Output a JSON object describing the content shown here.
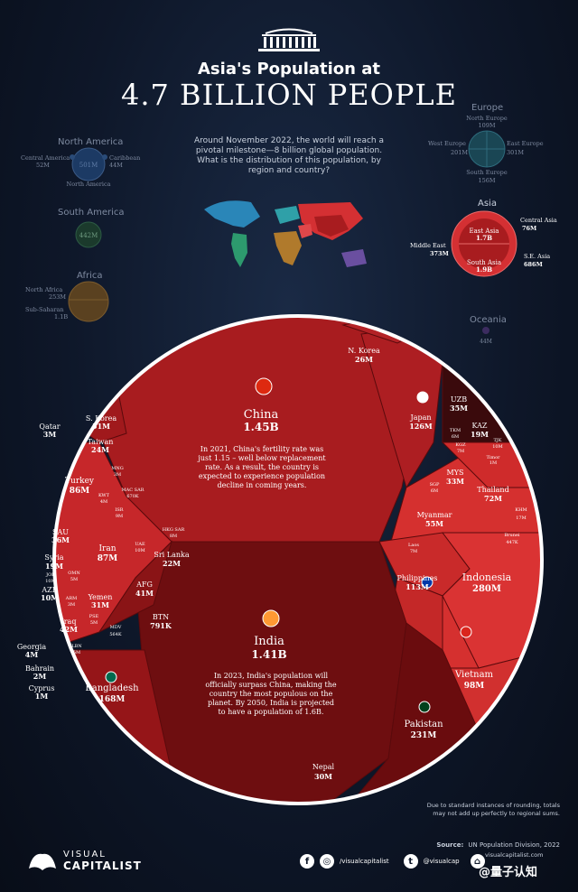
{
  "header": {
    "title_line1": "Asia's Population at",
    "title_line2": "4.7 BILLION PEOPLE",
    "intro": "Around November 2022, the world will reach a pivotal milestone—8 billion global population. What is the distribution of this population, by region and country?"
  },
  "regions": {
    "north_america": {
      "label": "North America",
      "central": "Central America",
      "central_val": "52M",
      "main_val": "501M",
      "caribbean": "Caribbean",
      "caribbean_val": "44M",
      "sub": "North America"
    },
    "south_america": {
      "label": "South America",
      "val": "442M"
    },
    "africa": {
      "label": "Africa",
      "north": "North Africa",
      "north_val": "253M",
      "sub": "Sub-Saharan",
      "sub_val": "1.1B"
    },
    "europe": {
      "label": "Europe",
      "north": "North Europe",
      "north_val": "109M",
      "west": "West Europe",
      "west_val": "201M",
      "east": "East Europe",
      "east_val": "301M",
      "south": "South Europe",
      "south_val": "156M"
    },
    "asia": {
      "label": "Asia",
      "east": "East Asia",
      "east_val": "1.7B",
      "central": "Central Asia",
      "central_val": "76M",
      "middle": "Middle East",
      "middle_val": "373M",
      "south": "South Asia",
      "south_val": "1.9B",
      "se": "S.E. Asia",
      "se_val": "686M"
    },
    "oceania": {
      "label": "Oceania",
      "val": "44M"
    }
  },
  "countries": {
    "china": {
      "name": "China",
      "val": "1.45B",
      "note": "In 2021, China's fertility rate was just 1.15 – well below replacement rate. As a result, the country is expected to experience population decline in coming years."
    },
    "india": {
      "name": "India",
      "val": "1.41B",
      "note": "In 2023, India's population will officially surpass China, making the country the most populous on the planet. By 2050, India is projected to have a population of 1.6B."
    },
    "nkorea": {
      "name": "N. Korea",
      "val": "26M"
    },
    "japan": {
      "name": "Japan",
      "val": "126M"
    },
    "skorea": {
      "name": "S. Korea",
      "val": "51M"
    },
    "taiwan": {
      "name": "Taiwan",
      "val": "24M"
    },
    "mng": {
      "name": "MNG",
      "val": "3M"
    },
    "macsar": {
      "name": "MAC SAR",
      "val": "670K"
    },
    "hkgsar": {
      "name": "HKG SAR",
      "val": "8M"
    },
    "uzb": {
      "name": "UZB",
      "val": "35M"
    },
    "kaz": {
      "name": "KAZ",
      "val": "19M"
    },
    "tjk": {
      "name": "TJK",
      "val": "10M"
    },
    "tkm": {
      "name": "TKM",
      "val": "6M"
    },
    "kgz": {
      "name": "KGZ",
      "val": "7M"
    },
    "timor": {
      "name": "Timor",
      "val": "1M"
    },
    "mys": {
      "name": "MYS",
      "val": "33M"
    },
    "sgp": {
      "name": "SGP",
      "val": "6M"
    },
    "thailand": {
      "name": "Thailand",
      "val": "72M"
    },
    "khm": {
      "name": "KHM",
      "val": "17M"
    },
    "brunei": {
      "name": "Brunei",
      "val": "447K"
    },
    "myanmar": {
      "name": "Myanmar",
      "val": "55M"
    },
    "laos": {
      "name": "Laos",
      "val": "7M"
    },
    "philippines": {
      "name": "Philippines",
      "val": "113M"
    },
    "indonesia": {
      "name": "Indonesia",
      "val": "280M"
    },
    "vietnam": {
      "name": "Vietnam",
      "val": "98M"
    },
    "qatar": {
      "name": "Qatar",
      "val": "3M"
    },
    "turkey": {
      "name": "Turkey",
      "val": "86M"
    },
    "kwt": {
      "name": "KWT",
      "val": "4M"
    },
    "isr": {
      "name": "ISR",
      "val": "9M"
    },
    "sau": {
      "name": "SAU",
      "val": "36M"
    },
    "iran": {
      "name": "Iran",
      "val": "87M"
    },
    "uae": {
      "name": "UAE",
      "val": "10M"
    },
    "syria": {
      "name": "Syria",
      "val": "19M"
    },
    "jor": {
      "name": "JOR",
      "val": "10M"
    },
    "omn": {
      "name": "OMN",
      "val": "5M"
    },
    "aze": {
      "name": "AZE",
      "val": "10M"
    },
    "yemen": {
      "name": "Yemen",
      "val": "31M"
    },
    "arm": {
      "name": "ARM",
      "val": "3M"
    },
    "iraq": {
      "name": "Iraq",
      "val": "42M"
    },
    "pse": {
      "name": "PSE",
      "val": "5M"
    },
    "lbn": {
      "name": "LBN",
      "val": "5M"
    },
    "georgia": {
      "name": "Georgia",
      "val": "4M"
    },
    "bahrain": {
      "name": "Bahrain",
      "val": "2M"
    },
    "cyprus": {
      "name": "Cyprus",
      "val": "1M"
    },
    "srilanka": {
      "name": "Sri Lanka",
      "val": "22M"
    },
    "afg": {
      "name": "AFG",
      "val": "41M"
    },
    "mdv": {
      "name": "MDV",
      "val": "564K"
    },
    "btn": {
      "name": "BTN",
      "val": "791K"
    },
    "bangladesh": {
      "name": "Bangladesh",
      "val": "168M"
    },
    "pakistan": {
      "name": "Pakistan",
      "val": "231M"
    },
    "nepal": {
      "name": "Nepal",
      "val": "30M"
    }
  },
  "footnote": "Due to standard instances of rounding, totals may not add up perfectly to regional sums.",
  "source_label": "Source:",
  "source": "UN Population Division, 2022",
  "brand": {
    "line1": "VISUAL",
    "line2": "CAPITALIST"
  },
  "social": {
    "handle": "/visualcapitalist",
    "twitter": "@visualcap",
    "site": "visualcapitalist.com"
  },
  "watermark": "@量子认知",
  "colors": {
    "background": "#0e1729",
    "china": "#a81c1f",
    "india": "#6e0e10",
    "middle_east": "#c6272a",
    "se_asia": "#d5302f",
    "central_asia": "#3a0a0c"
  }
}
